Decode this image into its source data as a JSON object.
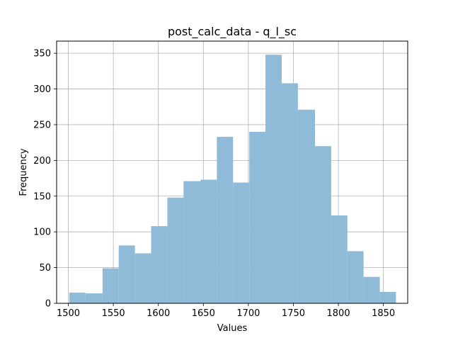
{
  "chart_data": {
    "type": "bar",
    "title": "post_calc_data - q_l_sc",
    "xlabel": "Values",
    "ylabel": "Frequency",
    "xlim": [
      1487,
      1877
    ],
    "ylim": [
      0,
      367
    ],
    "xticks": [
      1500,
      1550,
      1600,
      1650,
      1700,
      1750,
      1800,
      1850
    ],
    "yticks": [
      0,
      50,
      100,
      150,
      200,
      250,
      300,
      350
    ],
    "grid": true,
    "bar_color": "#8fbbd9",
    "bins": [
      {
        "start": 1501,
        "end": 1519,
        "count": 15
      },
      {
        "start": 1519,
        "end": 1538,
        "count": 14
      },
      {
        "start": 1538,
        "end": 1556,
        "count": 49
      },
      {
        "start": 1556,
        "end": 1574,
        "count": 81
      },
      {
        "start": 1574,
        "end": 1592,
        "count": 70
      },
      {
        "start": 1592,
        "end": 1610,
        "count": 108
      },
      {
        "start": 1610,
        "end": 1628,
        "count": 148
      },
      {
        "start": 1628,
        "end": 1647,
        "count": 171
      },
      {
        "start": 1647,
        "end": 1665,
        "count": 173
      },
      {
        "start": 1665,
        "end": 1683,
        "count": 233
      },
      {
        "start": 1683,
        "end": 1701,
        "count": 169
      },
      {
        "start": 1701,
        "end": 1719,
        "count": 240
      },
      {
        "start": 1719,
        "end": 1737,
        "count": 348
      },
      {
        "start": 1737,
        "end": 1755,
        "count": 308
      },
      {
        "start": 1755,
        "end": 1774,
        "count": 271
      },
      {
        "start": 1774,
        "end": 1792,
        "count": 220
      },
      {
        "start": 1792,
        "end": 1810,
        "count": 123
      },
      {
        "start": 1810,
        "end": 1828,
        "count": 73
      },
      {
        "start": 1828,
        "end": 1846,
        "count": 37
      },
      {
        "start": 1846,
        "end": 1864,
        "count": 16
      }
    ]
  }
}
